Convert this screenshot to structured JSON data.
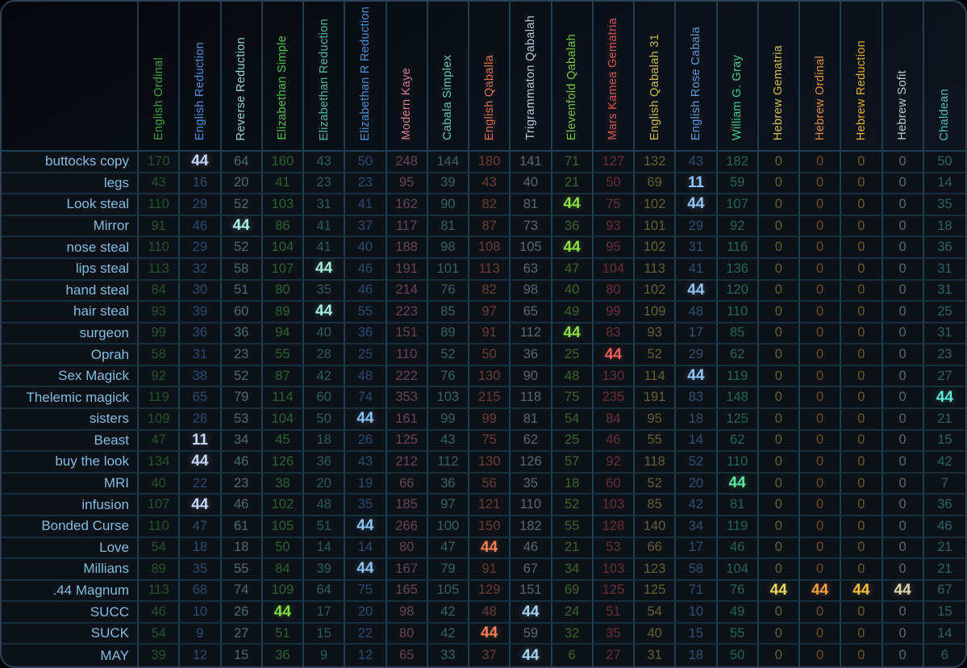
{
  "app": {
    "name": "gematria-cipher-comparison-table",
    "corner_label": ""
  },
  "colors": {
    "background": "#0d1219",
    "outer_border": "#2b4258",
    "grid_vertical": "#1c4051",
    "grid_horizontal": "#14303d",
    "row_label_text": "#82bcdf",
    "header_gradient": [
      "#05080d",
      "#0e141d"
    ]
  },
  "table": {
    "columns": [
      {
        "label": "English Ordinal",
        "color": "#3fa13f",
        "hl": "#7fe07f"
      },
      {
        "label": "English Reduction",
        "color": "#4a8fd8",
        "hl": "#c6d6fb"
      },
      {
        "label": "Reverse Reduction",
        "color": "#92d5d5",
        "hl": "#aaf0e6"
      },
      {
        "label": "Elizabethan Simple",
        "color": "#4cc44c",
        "hl": "#7fdd3c"
      },
      {
        "label": "Elizabethan Reduction",
        "color": "#4db8a2",
        "hl": "#a4eed8"
      },
      {
        "label": "Elizabethan R Reduction",
        "color": "#4a90d9",
        "hl": "#8cc3f5"
      },
      {
        "label": "Modern Kaye",
        "color": "#d4808f",
        "hl": "#f0a0b0"
      },
      {
        "label": "Cabala Simplex",
        "color": "#62c4b6",
        "hl": "#8ae8d8"
      },
      {
        "label": "English Qaballa",
        "color": "#dc6f4e",
        "hl": "#f58155"
      },
      {
        "label": "Trigrammaton Qabalah",
        "color": "#b6c9d8",
        "hl": "#a4d4f0"
      },
      {
        "label": "Elevenfold Qabalah",
        "color": "#72c83e",
        "hl": "#8fdf45"
      },
      {
        "label": "Mars Kamea Gematria",
        "color": "#d65353",
        "hl": "#ef5c5c"
      },
      {
        "label": "English Qabalah 31",
        "color": "#cfba4c",
        "hl": "#ecd95e"
      },
      {
        "label": "English Rose Cabala",
        "color": "#5a9ad9",
        "hl": "#92c5f6"
      },
      {
        "label": "William G. Gray",
        "color": "#3eca8b",
        "hl": "#5aeb9e"
      },
      {
        "label": "Hebrew Gematria",
        "color": "#cfba4c",
        "hl": "#ecd75f"
      },
      {
        "label": "Hebrew Ordinal",
        "color": "#dc8e3a",
        "hl": "#f79f45"
      },
      {
        "label": "Hebrew Reduction",
        "color": "#e2ab2d",
        "hl": "#f7bd3c"
      },
      {
        "label": "Hebrew Sofit",
        "color": "#c2c8ce",
        "hl": "#ded4ae"
      },
      {
        "label": "Chaldean",
        "color": "#4cc1c1",
        "hl": "#5fe8d8"
      }
    ],
    "rows": [
      {
        "label": "buttocks copy",
        "values": [
          170,
          44,
          64,
          160,
          43,
          50,
          248,
          144,
          180,
          141,
          71,
          127,
          132,
          43,
          182,
          0,
          0,
          0,
          0,
          50
        ],
        "hl_cols": [
          1
        ]
      },
      {
        "label": "legs",
        "values": [
          43,
          16,
          20,
          41,
          23,
          23,
          95,
          39,
          43,
          40,
          21,
          50,
          69,
          11,
          59,
          0,
          0,
          0,
          0,
          14
        ],
        "hl_cols": [
          13
        ]
      },
      {
        "label": "Look steal",
        "values": [
          110,
          29,
          52,
          103,
          31,
          41,
          162,
          90,
          82,
          81,
          44,
          75,
          102,
          44,
          107,
          0,
          0,
          0,
          0,
          35
        ],
        "hl_cols": [
          10,
          13
        ]
      },
      {
        "label": "Mirror",
        "values": [
          91,
          46,
          44,
          86,
          41,
          37,
          117,
          81,
          87,
          73,
          36,
          93,
          101,
          29,
          92,
          0,
          0,
          0,
          0,
          18
        ],
        "hl_cols": [
          2
        ]
      },
      {
        "label": "nose steal",
        "values": [
          110,
          29,
          52,
          104,
          41,
          40,
          188,
          98,
          108,
          105,
          44,
          95,
          102,
          31,
          116,
          0,
          0,
          0,
          0,
          36
        ],
        "hl_cols": [
          10
        ]
      },
      {
        "label": "lips steal",
        "values": [
          113,
          32,
          58,
          107,
          44,
          46,
          191,
          101,
          113,
          63,
          47,
          104,
          113,
          41,
          136,
          0,
          0,
          0,
          0,
          31
        ],
        "hl_cols": [
          4
        ]
      },
      {
        "label": "hand steal",
        "values": [
          84,
          30,
          51,
          80,
          35,
          46,
          214,
          76,
          82,
          98,
          40,
          80,
          102,
          44,
          120,
          0,
          0,
          0,
          0,
          31
        ],
        "hl_cols": [
          13
        ]
      },
      {
        "label": "hair steal",
        "values": [
          93,
          39,
          60,
          89,
          44,
          55,
          223,
          85,
          97,
          65,
          49,
          99,
          109,
          48,
          110,
          0,
          0,
          0,
          0,
          25
        ],
        "hl_cols": [
          4
        ]
      },
      {
        "label": "surgeon",
        "values": [
          99,
          36,
          36,
          94,
          40,
          36,
          151,
          89,
          91,
          112,
          44,
          83,
          93,
          17,
          85,
          0,
          0,
          0,
          0,
          31
        ],
        "hl_cols": [
          10
        ]
      },
      {
        "label": "Oprah",
        "values": [
          58,
          31,
          23,
          55,
          28,
          25,
          110,
          52,
          50,
          36,
          25,
          44,
          52,
          29,
          62,
          0,
          0,
          0,
          0,
          23
        ],
        "hl_cols": [
          11
        ]
      },
      {
        "label": "Sex Magick",
        "values": [
          92,
          38,
          52,
          87,
          42,
          48,
          222,
          76,
          130,
          90,
          48,
          130,
          114,
          44,
          119,
          0,
          0,
          0,
          0,
          27
        ],
        "hl_cols": [
          13
        ]
      },
      {
        "label": "Thelemic magick",
        "values": [
          119,
          65,
          79,
          114,
          60,
          74,
          353,
          103,
          215,
          118,
          75,
          235,
          191,
          83,
          148,
          0,
          0,
          0,
          0,
          44
        ],
        "hl_cols": [
          19
        ]
      },
      {
        "label": "sisters",
        "values": [
          109,
          28,
          53,
          104,
          50,
          44,
          161,
          99,
          99,
          81,
          54,
          84,
          95,
          18,
          125,
          0,
          0,
          0,
          0,
          21
        ],
        "hl_cols": [
          5
        ]
      },
      {
        "label": "Beast",
        "values": [
          47,
          11,
          34,
          45,
          18,
          26,
          125,
          43,
          75,
          62,
          25,
          46,
          55,
          14,
          62,
          0,
          0,
          0,
          0,
          15
        ],
        "hl_cols": [
          1
        ]
      },
      {
        "label": "buy the look",
        "values": [
          134,
          44,
          46,
          126,
          36,
          43,
          212,
          112,
          130,
          126,
          57,
          92,
          118,
          52,
          110,
          0,
          0,
          0,
          0,
          42
        ],
        "hl_cols": [
          1
        ]
      },
      {
        "label": "MRI",
        "values": [
          40,
          22,
          23,
          38,
          20,
          19,
          66,
          36,
          56,
          35,
          18,
          60,
          52,
          20,
          44,
          0,
          0,
          0,
          0,
          7
        ],
        "hl_cols": [
          14
        ]
      },
      {
        "label": "infusion",
        "values": [
          107,
          44,
          46,
          102,
          48,
          35,
          185,
          97,
          121,
          110,
          52,
          103,
          85,
          42,
          81,
          0,
          0,
          0,
          0,
          36
        ],
        "hl_cols": [
          1
        ]
      },
      {
        "label": "Bonded Curse",
        "values": [
          110,
          47,
          61,
          105,
          51,
          44,
          266,
          100,
          150,
          182,
          55,
          128,
          140,
          34,
          119,
          0,
          0,
          0,
          0,
          46
        ],
        "hl_cols": [
          5
        ]
      },
      {
        "label": "Love",
        "values": [
          54,
          18,
          18,
          50,
          14,
          14,
          80,
          47,
          44,
          46,
          21,
          53,
          66,
          17,
          46,
          0,
          0,
          0,
          0,
          21
        ],
        "hl_cols": [
          8
        ]
      },
      {
        "label": "Millians",
        "values": [
          89,
          35,
          55,
          84,
          39,
          44,
          167,
          79,
          91,
          67,
          34,
          103,
          123,
          58,
          104,
          0,
          0,
          0,
          0,
          21
        ],
        "hl_cols": [
          5
        ]
      },
      {
        "label": ".44 Magnum",
        "values": [
          113,
          68,
          74,
          109,
          64,
          75,
          165,
          105,
          129,
          151,
          69,
          125,
          125,
          71,
          76,
          44,
          44,
          44,
          44,
          67
        ],
        "hl_cols": [
          15,
          16,
          17,
          18
        ]
      },
      {
        "label": "SUCC",
        "values": [
          46,
          10,
          26,
          44,
          17,
          20,
          98,
          42,
          48,
          44,
          24,
          51,
          54,
          10,
          49,
          0,
          0,
          0,
          0,
          15
        ],
        "hl_cols": [
          3,
          9
        ]
      },
      {
        "label": "SUCK",
        "values": [
          54,
          9,
          27,
          51,
          15,
          22,
          80,
          42,
          44,
          59,
          32,
          35,
          40,
          15,
          55,
          0,
          0,
          0,
          0,
          14
        ],
        "hl_cols": [
          8
        ]
      },
      {
        "label": "MAY",
        "values": [
          39,
          12,
          15,
          36,
          9,
          12,
          65,
          33,
          37,
          44,
          6,
          27,
          31,
          18,
          50,
          0,
          0,
          0,
          0,
          6
        ],
        "hl_cols": [
          9
        ]
      }
    ]
  }
}
